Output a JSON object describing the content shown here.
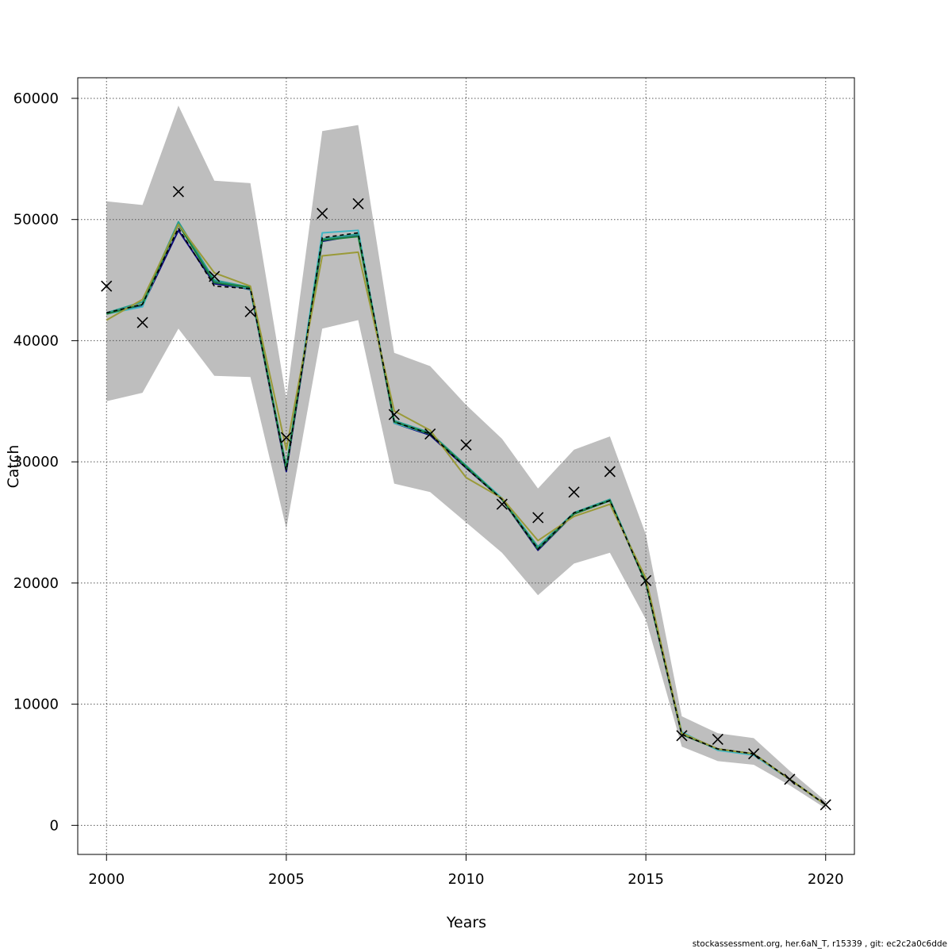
{
  "chart_data": {
    "type": "line",
    "xlabel": "Years",
    "ylabel": "Catch",
    "xlim": [
      1999.2,
      2020.8
    ],
    "ylim": [
      -2400,
      61700
    ],
    "x_ticks": [
      2000,
      2005,
      2010,
      2015,
      2020
    ],
    "y_ticks": [
      0,
      10000,
      20000,
      30000,
      40000,
      50000,
      60000
    ],
    "grid": true,
    "colors": {
      "band": "#bebebe",
      "observed_marker": "#000000",
      "dashed_line": "#000000",
      "series": [
        "#0d0b7a",
        "#2f6b8f",
        "#41b6c4",
        "#2a9d8f",
        "#1a7f3c",
        "#9a9a38"
      ]
    },
    "x": [
      2000,
      2001,
      2002,
      2003,
      2004,
      2005,
      2006,
      2007,
      2008,
      2009,
      2010,
      2011,
      2012,
      2013,
      2014,
      2015,
      2016,
      2017,
      2018,
      2019,
      2020
    ],
    "band_upper": [
      51500,
      51200,
      59400,
      53200,
      53000,
      35200,
      57300,
      57800,
      39000,
      37900,
      34700,
      31900,
      27800,
      31000,
      32100,
      24000,
      9000,
      7600,
      7200,
      4500,
      2000
    ],
    "band_lower": [
      35000,
      35700,
      41000,
      37100,
      37000,
      24500,
      41000,
      41700,
      28200,
      27500,
      25000,
      22500,
      19000,
      21600,
      22500,
      17000,
      6500,
      5300,
      5000,
      3300,
      1400
    ],
    "observed": [
      44500,
      41500,
      52300,
      45300,
      42400,
      32000,
      50500,
      51300,
      33900,
      32300,
      31400,
      26500,
      25400,
      27500,
      29200,
      20200,
      7400,
      7100,
      5900,
      3800,
      1700
    ],
    "estimate_dashed": [
      42300,
      43000,
      49300,
      44500,
      44300,
      29300,
      48500,
      48900,
      33300,
      32300,
      29500,
      26900,
      22800,
      25800,
      26800,
      20000,
      7500,
      6300,
      5900,
      3800,
      1700
    ],
    "series": [
      {
        "values": [
          42300,
          42900,
          49100,
          44700,
          44300,
          29200,
          48200,
          48700,
          33200,
          32200,
          29500,
          26900,
          22700,
          25700,
          26800,
          20000,
          7500,
          6300,
          5900,
          3800,
          1700
        ]
      },
      {
        "values": [
          42200,
          43000,
          49600,
          44900,
          44200,
          29400,
          48300,
          48700,
          33300,
          32300,
          29600,
          26900,
          22900,
          25700,
          26800,
          20000,
          7600,
          6300,
          5800,
          3800,
          1700
        ]
      },
      {
        "values": [
          42200,
          42800,
          49800,
          45000,
          44300,
          29500,
          48900,
          49100,
          33200,
          32300,
          29700,
          27000,
          23000,
          25800,
          26900,
          20100,
          7700,
          6200,
          5800,
          3800,
          1700
        ]
      },
      {
        "values": [
          42300,
          43200,
          49800,
          45000,
          44400,
          29600,
          48400,
          48800,
          33400,
          32400,
          29700,
          26900,
          23000,
          25800,
          26900,
          20100,
          7600,
          6300,
          5900,
          3800,
          1700
        ]
      },
      {
        "values": [
          42200,
          43000,
          49600,
          44800,
          44400,
          29400,
          48300,
          48600,
          33300,
          32300,
          29600,
          26900,
          22800,
          25700,
          26800,
          20000,
          7500,
          6300,
          5900,
          3800,
          1700
        ]
      },
      {
        "values": [
          41700,
          43400,
          49600,
          45600,
          44500,
          31000,
          47000,
          47300,
          34200,
          32600,
          28700,
          27000,
          23500,
          25500,
          26500,
          20400,
          7600,
          6300,
          5900,
          3800,
          1700
        ]
      }
    ]
  },
  "footer": "stockassessment.org, her.6aN_T, r15339 , git: ec2c2a0c6dde"
}
